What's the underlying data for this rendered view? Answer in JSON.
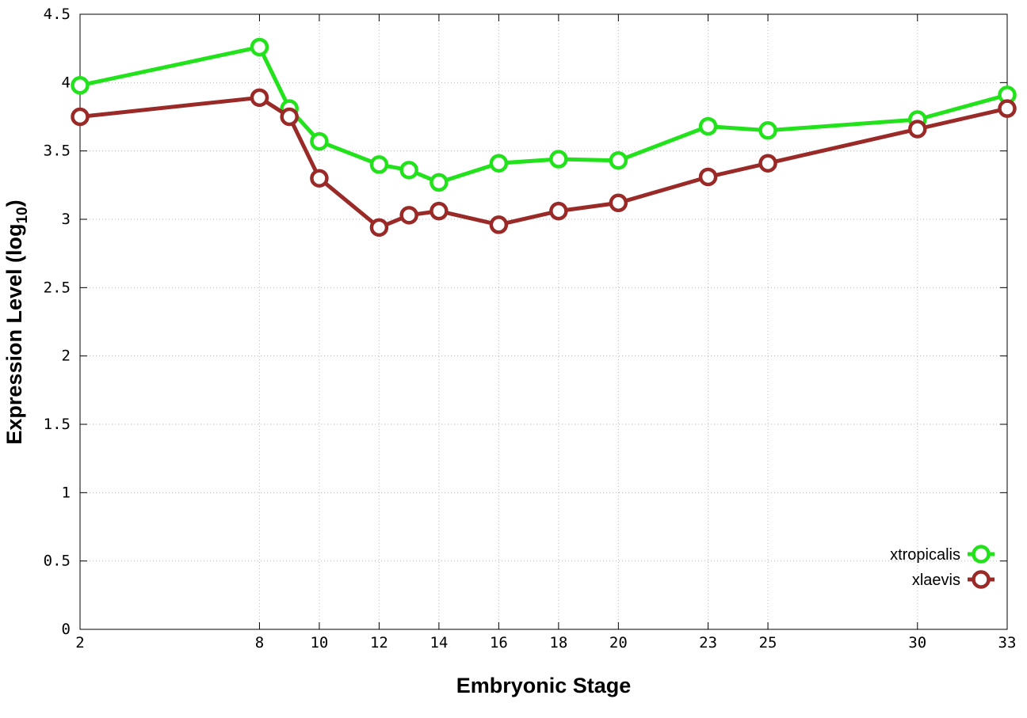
{
  "chart_data": {
    "type": "line",
    "title": "",
    "xlabel": "Embryonic Stage",
    "ylabel_main": "Expression Level (log",
    "ylabel_sub": "10",
    "ylabel_close": ")",
    "x": [
      2,
      8,
      9,
      10,
      12,
      13,
      14,
      16,
      18,
      20,
      23,
      25,
      30,
      33
    ],
    "x_ticks": [
      2,
      8,
      10,
      12,
      14,
      16,
      18,
      20,
      23,
      25,
      30,
      33
    ],
    "x_tick_labels": [
      "2",
      "8",
      "10",
      "12",
      "14",
      "16",
      "18",
      "20",
      "23",
      "25",
      "30",
      "33"
    ],
    "y_ticks": [
      0,
      0.5,
      1,
      1.5,
      2,
      2.5,
      3,
      3.5,
      4,
      4.5
    ],
    "y_tick_labels": [
      "0",
      "0.5",
      "1",
      "1.5",
      "2",
      "2.5",
      "3",
      "3.5",
      "4",
      "4.5"
    ],
    "xlim": [
      2,
      33
    ],
    "ylim": [
      0,
      4.5
    ],
    "grid": true,
    "legend_position": "bottom-right",
    "series": [
      {
        "name": "xtropicalis",
        "color": "#22e21c",
        "values": [
          3.98,
          4.26,
          3.81,
          3.57,
          3.4,
          3.36,
          3.27,
          3.41,
          3.44,
          3.43,
          3.68,
          3.65,
          3.73,
          3.91
        ]
      },
      {
        "name": "xlaevis",
        "color": "#9a2a27",
        "values": [
          3.75,
          3.89,
          3.75,
          3.3,
          2.94,
          3.03,
          3.06,
          2.96,
          3.06,
          3.12,
          3.31,
          3.41,
          3.66,
          3.81
        ]
      }
    ]
  }
}
